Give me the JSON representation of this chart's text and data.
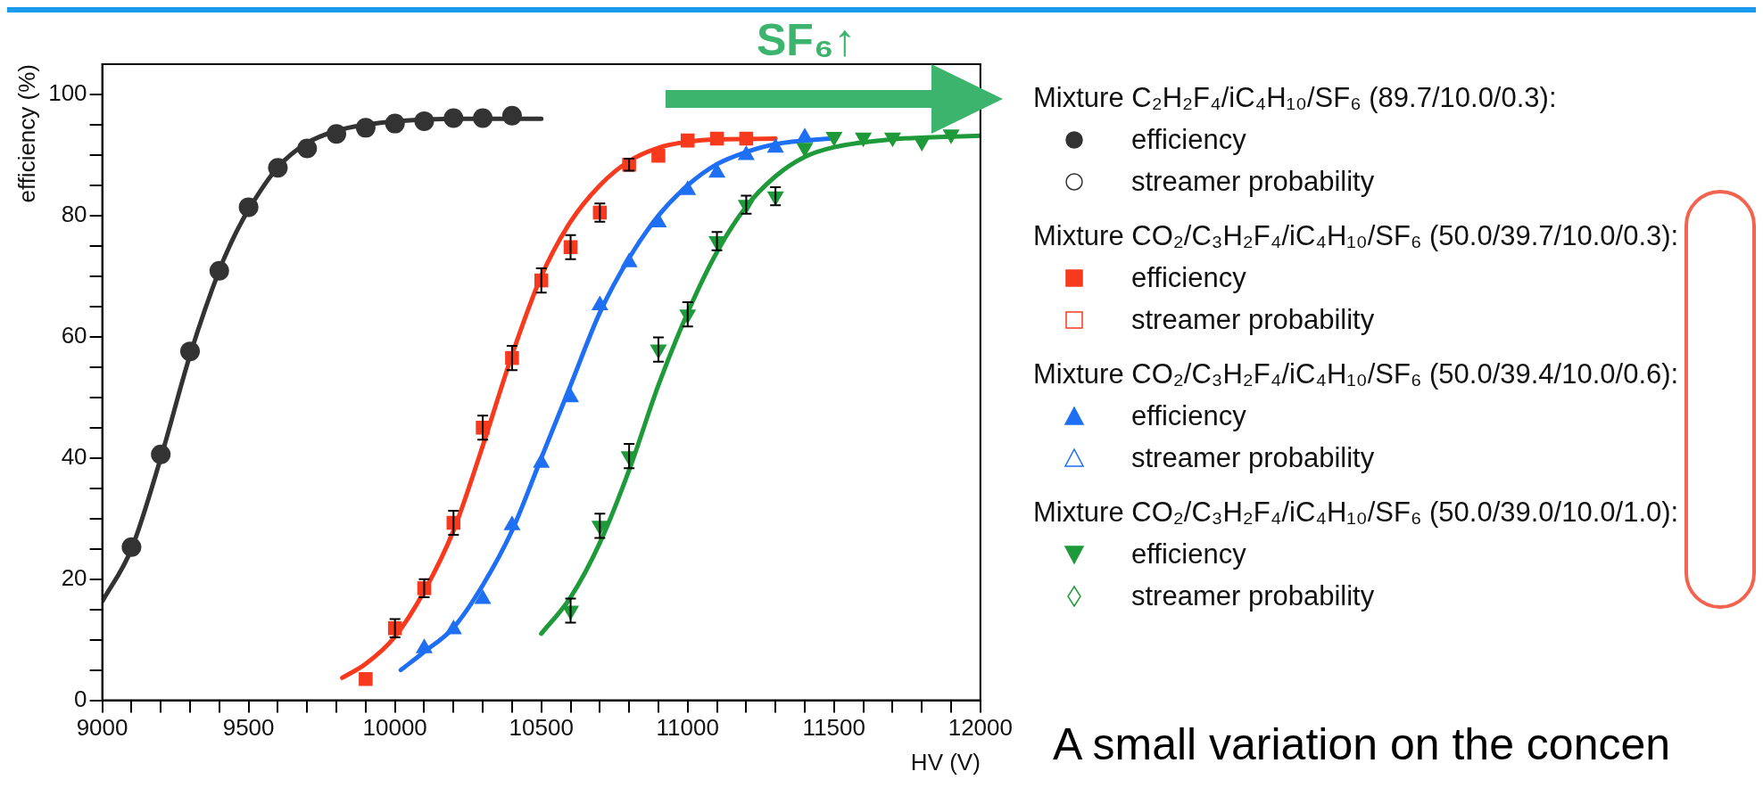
{
  "chart_data": {
    "type": "scatter",
    "xlabel": "HV (V)",
    "ylabel": "efficiency (%)",
    "xlim": [
      9000,
      12000
    ],
    "ylim": [
      0,
      105
    ],
    "xticks": [
      9000,
      {
        "value": 9100,
        "label": null
      },
      {
        "value": 9200,
        "label": null
      },
      {
        "value": 9300,
        "label": null
      },
      {
        "value": 9400,
        "label": null
      },
      9500,
      {
        "value": 9600,
        "label": null
      },
      {
        "value": 9700,
        "label": null
      },
      {
        "value": 9800,
        "label": null
      },
      {
        "value": 9900,
        "label": null
      },
      10000,
      {
        "value": 10100,
        "label": null
      },
      {
        "value": 10200,
        "label": null
      },
      {
        "value": 10300,
        "label": null
      },
      {
        "value": 10400,
        "label": null
      },
      10500,
      {
        "value": 10600,
        "label": null
      },
      {
        "value": 10700,
        "label": null
      },
      {
        "value": 10800,
        "label": null
      },
      {
        "value": 10900,
        "label": null
      },
      11000,
      {
        "value": 11100,
        "label": null
      },
      {
        "value": 11200,
        "label": null
      },
      {
        "value": 11300,
        "label": null
      },
      {
        "value": 11400,
        "label": null
      },
      11500,
      {
        "value": 11600,
        "label": null
      },
      {
        "value": 11700,
        "label": null
      },
      {
        "value": 11800,
        "label": null
      },
      {
        "value": 11900,
        "label": null
      },
      12000
    ],
    "yticks": [
      0,
      {
        "value": 5,
        "label": null
      },
      {
        "value": 10,
        "label": null
      },
      {
        "value": 15,
        "label": null
      },
      20,
      {
        "value": 25,
        "label": null
      },
      {
        "value": 30,
        "label": null
      },
      {
        "value": 35,
        "label": null
      },
      40,
      {
        "value": 45,
        "label": null
      },
      {
        "value": 50,
        "label": null
      },
      {
        "value": 55,
        "label": null
      },
      60,
      {
        "value": 65,
        "label": null
      },
      {
        "value": 70,
        "label": null
      },
      {
        "value": 75,
        "label": null
      },
      80,
      {
        "value": 85,
        "label": null
      },
      {
        "value": 90,
        "label": null
      },
      {
        "value": 95,
        "label": null
      },
      100
    ],
    "legend": "right",
    "annotations": [
      "SF₆↑",
      "Mixture C₂H₂F₄/iC₄H₁₀/SF₆ (89.7/10.0/0.3):",
      "Mixture CO₂/C₃H₂F₄/iC₄H₁₀/SF₆ (50.0/39.7/10.0/0.3):",
      "Mixture CO₂/C₃H₂F₄/iC₄H₁₀/SF₆ (50.0/39.4/10.0/0.6):",
      "Mixture CO₂/C₃H₂F₄/iC₄H₁₀/SF₆ (50.0/39.0/10.0/1.0):",
      "A small variation on the concen"
    ],
    "series": [
      {
        "name": "efficiency",
        "marker": "circle",
        "color": "#333333",
        "x": [
          9100,
          9200,
          9300,
          9400,
          9500,
          9600,
          9700,
          9800,
          9900,
          10000,
          10100,
          10200,
          10300,
          10400
        ],
        "values": [
          25.3,
          40.6,
          57.6,
          70.9,
          81.4,
          87.9,
          91.1,
          93.5,
          94.5,
          95.2,
          95.6,
          96.1,
          96.1,
          96.5
        ]
      },
      {
        "name": "streamer probability",
        "marker": "circle",
        "color": "#333333"
      },
      {
        "name": "efficiency",
        "marker": "square",
        "color": "#f73a1e",
        "x": [
          9900,
          10000,
          10100,
          10200,
          10300,
          10400,
          10500,
          10600,
          10700,
          10800,
          10900,
          11000,
          11100,
          11200
        ],
        "values": [
          3.5,
          11.9,
          18.5,
          29.3,
          45.0,
          56.5,
          69.3,
          74.8,
          80.5,
          88.4,
          89.9,
          92.4,
          92.7,
          92.7
        ],
        "errors": [
          null,
          1.5,
          1.5,
          2,
          2,
          2,
          2,
          2,
          1.5,
          1,
          null,
          null,
          null,
          null
        ]
      },
      {
        "name": "streamer probability",
        "marker": "square",
        "color": "#f73a1e"
      },
      {
        "name": "efficiency",
        "marker": "triangle",
        "color": "#1f6ff5",
        "x": [
          10100,
          10200,
          10300,
          10400,
          10500,
          10600,
          10700,
          10800,
          10900,
          11000,
          11100,
          11200,
          11300,
          11400
        ],
        "values": [
          8.6,
          11.7,
          16.7,
          28.9,
          39.2,
          50.0,
          65.2,
          72.3,
          78.9,
          84.2,
          87.1,
          90.0,
          91.2,
          92.9
        ]
      },
      {
        "name": "streamer probability",
        "marker": "triangle",
        "color": "#1f6ff5"
      },
      {
        "name": "efficiency",
        "marker": "triangle-down",
        "color": "#1f9a3a",
        "x": [
          10600,
          10700,
          10800,
          10900,
          11000,
          11100,
          11200,
          11300,
          11400,
          11500,
          11600,
          11700,
          11800,
          11900
        ],
        "values": [
          14.8,
          28.8,
          40.3,
          57.9,
          63.7,
          75.8,
          81.8,
          83.2,
          91.2,
          93.0,
          92.9,
          92.9,
          92.2,
          93.4
        ],
        "errors": [
          2,
          2,
          2,
          2,
          2,
          1.5,
          1.5,
          1.5,
          null,
          null,
          null,
          null,
          null,
          null
        ]
      },
      {
        "name": "streamer probability",
        "marker": "diamond",
        "color": "#1f9a3a"
      },
      {
        "type": "line",
        "marker": "none",
        "color": "#333333",
        "x": [
          9000,
          9100,
          9200,
          9300,
          9400,
          9450,
          9500,
          9600,
          9700,
          9800,
          9900,
          10000,
          10200,
          10500
        ],
        "values": [
          16.3,
          25,
          40,
          57,
          71,
          76.5,
          81,
          88,
          92,
          94,
          95,
          95.6,
          96,
          96
        ]
      },
      {
        "type": "line",
        "marker": "none",
        "color": "#f73a1e",
        "x": [
          9820,
          9900,
          10000,
          10100,
          10200,
          10300,
          10400,
          10500,
          10600,
          10700,
          10800,
          10900,
          11000,
          11100,
          11300
        ],
        "values": [
          3.7,
          6,
          10.5,
          18,
          28,
          42,
          57,
          70,
          79,
          85,
          89,
          91.2,
          92.2,
          92.6,
          92.7
        ]
      },
      {
        "type": "line",
        "marker": "none",
        "color": "#1f6ff5",
        "x": [
          10020,
          10100,
          10200,
          10300,
          10400,
          10500,
          10600,
          10700,
          10800,
          10900,
          11000,
          11100,
          11200,
          11300,
          11500
        ],
        "values": [
          5,
          8,
          12,
          19,
          28,
          40,
          52,
          64,
          73,
          80,
          85,
          88.5,
          90.5,
          91.8,
          92.8
        ]
      },
      {
        "type": "line",
        "marker": "none",
        "color": "#1f9a3a",
        "x": [
          10500,
          10600,
          10700,
          10800,
          10900,
          11000,
          11100,
          11200,
          11300,
          11400,
          11500,
          11700,
          12000
        ],
        "values": [
          11,
          17,
          26,
          38,
          52,
          64,
          74,
          81.5,
          86.5,
          89.7,
          91.3,
          92.6,
          93.2
        ]
      }
    ]
  }
}
